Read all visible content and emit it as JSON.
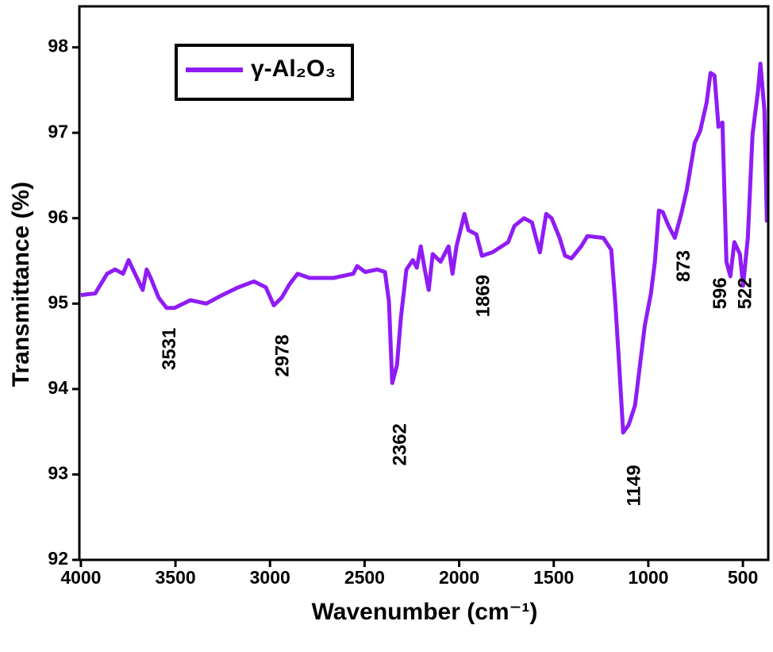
{
  "chart_data": {
    "type": "line",
    "x_label": "Wavenumber (cm⁻¹)",
    "y_label": "Transmittance (%)",
    "xlim": [
      4008,
      366
    ],
    "ylim": [
      92,
      98.48
    ],
    "xticks": [
      4000,
      3500,
      3000,
      2500,
      2000,
      1500,
      1000,
      500
    ],
    "yticks": [
      92,
      93,
      94,
      95,
      96,
      97,
      98
    ],
    "legend": "upper left",
    "series": [
      {
        "name": "γ-Al₂O₃",
        "color": "#8f1cf5",
        "x": [
          4000,
          3924,
          3861,
          3819,
          3777,
          3748,
          3714,
          3673,
          3652,
          3631,
          3589,
          3547,
          3505,
          3421,
          3337,
          3253,
          3169,
          3085,
          3022,
          2980,
          2938,
          2896,
          2854,
          2791,
          2665,
          2560,
          2539,
          2497,
          2434,
          2392,
          2371,
          2354,
          2329,
          2308,
          2279,
          2245,
          2224,
          2203,
          2182,
          2161,
          2140,
          2098,
          2056,
          2035,
          2014,
          1972,
          1951,
          1909,
          1880,
          1825,
          1741,
          1708,
          1657,
          1615,
          1594,
          1573,
          1540,
          1511,
          1469,
          1440,
          1406,
          1355,
          1322,
          1238,
          1196,
          1175,
          1154,
          1133,
          1104,
          1070,
          1049,
          1019,
          986,
          965,
          944,
          923,
          893,
          860,
          826,
          797,
          755,
          726,
          692,
          671,
          650,
          629,
          608,
          587,
          566,
          545,
          516,
          499,
          474,
          449,
          420,
          407,
          386,
          373
        ],
        "values": [
          95.1,
          95.12,
          95.35,
          95.4,
          95.35,
          95.51,
          95.35,
          95.16,
          95.4,
          95.3,
          95.07,
          94.95,
          94.95,
          95.04,
          95.0,
          95.1,
          95.19,
          95.26,
          95.19,
          94.98,
          95.07,
          95.23,
          95.35,
          95.3,
          95.3,
          95.35,
          95.44,
          95.37,
          95.4,
          95.37,
          95.02,
          94.07,
          94.28,
          94.84,
          95.4,
          95.51,
          95.42,
          95.67,
          95.4,
          95.16,
          95.58,
          95.49,
          95.67,
          95.35,
          95.67,
          96.05,
          95.86,
          95.81,
          95.56,
          95.6,
          95.72,
          95.91,
          96.0,
          95.95,
          95.77,
          95.6,
          96.05,
          96.0,
          95.77,
          95.56,
          95.53,
          95.67,
          95.79,
          95.77,
          95.63,
          95.02,
          94.28,
          93.49,
          93.58,
          93.81,
          94.19,
          94.74,
          95.12,
          95.49,
          96.09,
          96.07,
          95.91,
          95.77,
          96.05,
          96.33,
          96.88,
          97.02,
          97.35,
          97.7,
          97.67,
          97.07,
          97.12,
          95.49,
          95.32,
          95.72,
          95.58,
          95.21,
          95.77,
          96.98,
          97.49,
          97.81,
          97.26,
          95.95
        ]
      }
    ],
    "annotations": [
      {
        "text": "3531",
        "x": 3526,
        "y": 94.47
      },
      {
        "text": "2978",
        "x": 2929,
        "y": 94.39
      },
      {
        "text": "2362",
        "x": 2308,
        "y": 93.35
      },
      {
        "text": "1869",
        "x": 1867,
        "y": 95.09
      },
      {
        "text": "1149",
        "x": 1070,
        "y": 92.87
      },
      {
        "text": "873",
        "x": 809,
        "y": 95.44
      },
      {
        "text": "596",
        "x": 616,
        "y": 95.12
      },
      {
        "text": "522",
        "x": 482,
        "y": 95.12
      }
    ]
  }
}
